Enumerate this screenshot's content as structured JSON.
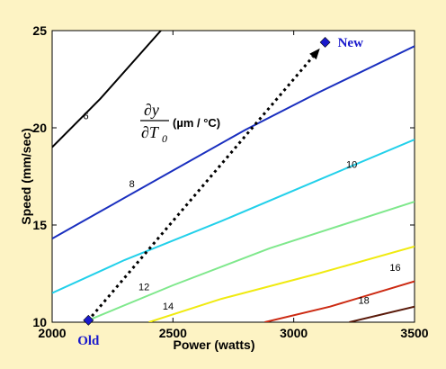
{
  "chart_data": {
    "type": "line",
    "xlabel": "Power  (watts)",
    "ylabel": "Speed  (mm/sec)",
    "xlim": [
      2000,
      3500
    ],
    "ylim": [
      10,
      25
    ],
    "xticks": [
      "2000",
      "2500",
      "3000",
      "3500"
    ],
    "yticks": [
      "10",
      "15",
      "20",
      "25"
    ],
    "annotation": {
      "numerator": "∂y",
      "denominator": "∂T",
      "subscript": "0",
      "unit": "(µm / °C)"
    },
    "contours": [
      {
        "label": "6",
        "color": "#000000",
        "points": [
          [
            2000,
            19.0
          ],
          [
            2200,
            21.5
          ],
          [
            2450,
            25.0
          ]
        ],
        "label_at": [
          2140,
          20.3
        ]
      },
      {
        "label": "8",
        "color": "#1a2fbf",
        "points": [
          [
            2000,
            14.3
          ],
          [
            2200,
            15.7
          ],
          [
            2500,
            17.8
          ],
          [
            2800,
            19.9
          ],
          [
            3100,
            21.8
          ],
          [
            3500,
            24.2
          ]
        ],
        "label_at": [
          2330,
          16.8
        ]
      },
      {
        "label": "10",
        "color": "#22d0ea",
        "points": [
          [
            2000,
            11.5
          ],
          [
            2300,
            13.2
          ],
          [
            2700,
            15.2
          ],
          [
            3100,
            17.3
          ],
          [
            3500,
            19.4
          ]
        ],
        "label_at": [
          3240,
          17.8
        ]
      },
      {
        "label": "12",
        "color": "#7fe88c",
        "points": [
          [
            2150,
            10.1
          ],
          [
            2500,
            11.9
          ],
          [
            2900,
            13.8
          ],
          [
            3200,
            15.0
          ],
          [
            3500,
            16.2
          ]
        ],
        "label_at": [
          2380,
          11.5
        ]
      },
      {
        "label": "14",
        "color": "#f0ea10",
        "points": [
          [
            2400,
            10.0
          ],
          [
            2700,
            11.2
          ],
          [
            3100,
            12.5
          ],
          [
            3500,
            13.9
          ]
        ],
        "label_at": [
          2480,
          10.5
        ]
      },
      {
        "label": "16",
        "color": "#cc2a12",
        "points": [
          [
            2880,
            10.0
          ],
          [
            3150,
            10.8
          ],
          [
            3500,
            12.1
          ]
        ],
        "label_at": [
          3420,
          12.5
        ]
      },
      {
        "label": "18",
        "color": "#5a1a0a",
        "points": [
          [
            3230,
            10.0
          ],
          [
            3500,
            10.8
          ]
        ],
        "label_at": [
          3290,
          10.8
        ]
      }
    ],
    "arrow": {
      "from": [
        2150,
        10.1
      ],
      "to": [
        3130,
        24.4
      ]
    },
    "points": [
      {
        "name": "Old",
        "x": 2150,
        "y": 10.1,
        "color": "#1a1acc"
      },
      {
        "name": "New",
        "x": 3130,
        "y": 24.4,
        "color": "#1a1acc"
      }
    ]
  }
}
